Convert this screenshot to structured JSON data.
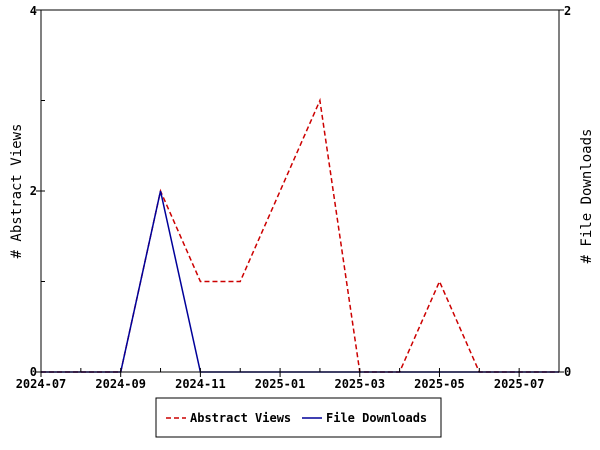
{
  "chart_data": {
    "type": "line",
    "x": [
      "2024-07",
      "2024-08",
      "2024-09",
      "2024-10",
      "2024-11",
      "2024-12",
      "2025-01",
      "2025-02",
      "2025-03",
      "2025-04",
      "2025-05",
      "2025-06",
      "2025-07",
      "2025-08"
    ],
    "x_ticks": [
      "2024-07",
      "2024-09",
      "2024-11",
      "2025-01",
      "2025-03",
      "2025-05",
      "2025-07"
    ],
    "ylabel": "# Abstract Views",
    "y2label": "# File Downloads",
    "ylim": [
      0,
      4
    ],
    "y2lim": [
      0,
      2
    ],
    "y_ticks": [
      "0",
      "2",
      "4"
    ],
    "y2_ticks": [
      "0",
      "2"
    ],
    "grid": false,
    "legend_position": "bottom",
    "series": [
      {
        "name": "Abstract Views",
        "axis": "left",
        "color": "#cc0000",
        "style": "dashed",
        "values": [
          0,
          0,
          0,
          2,
          1,
          1,
          2,
          3,
          0,
          0,
          1,
          0,
          0,
          0
        ]
      },
      {
        "name": "File Downloads",
        "axis": "right",
        "color": "#000099",
        "style": "solid",
        "values": [
          0,
          0,
          0,
          1,
          0,
          0,
          0,
          0,
          0,
          0,
          0,
          0,
          0,
          0
        ]
      }
    ]
  }
}
